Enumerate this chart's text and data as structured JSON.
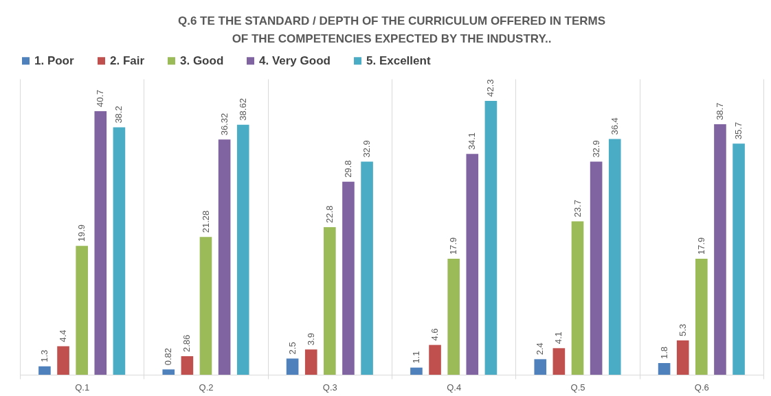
{
  "chart_data": {
    "type": "bar",
    "title": "Q.6 TE THE STANDARD / DEPTH OF THE CURRICULUM OFFERED IN TERMS OF THE COMPETENCIES EXPECTED BY THE INDUSTRY..",
    "categories": [
      "Q.1",
      "Q.2",
      "Q.3",
      "Q.4",
      "Q.5",
      "Q.6"
    ],
    "series": [
      {
        "name": "1.  Poor",
        "color": "#4f81bd",
        "values": [
          1.3,
          0.82,
          2.5,
          1.1,
          2.4,
          1.8
        ]
      },
      {
        "name": "2.  Fair",
        "color": "#c0504d",
        "values": [
          4.4,
          2.86,
          3.9,
          4.6,
          4.1,
          5.3
        ]
      },
      {
        "name": "3.  Good",
        "color": "#9bbb59",
        "values": [
          19.9,
          21.28,
          22.8,
          17.9,
          23.7,
          17.9
        ]
      },
      {
        "name": "4.  Very Good",
        "color": "#8064a2",
        "values": [
          40.7,
          36.32,
          29.8,
          34.1,
          32.9,
          38.7
        ]
      },
      {
        "name": "5.  Excellent",
        "color": "#4bacc6",
        "values": [
          38.2,
          38.62,
          32.9,
          42.3,
          36.4,
          35.7
        ]
      }
    ],
    "data_labels": true,
    "grid": "x",
    "legend": "top"
  }
}
